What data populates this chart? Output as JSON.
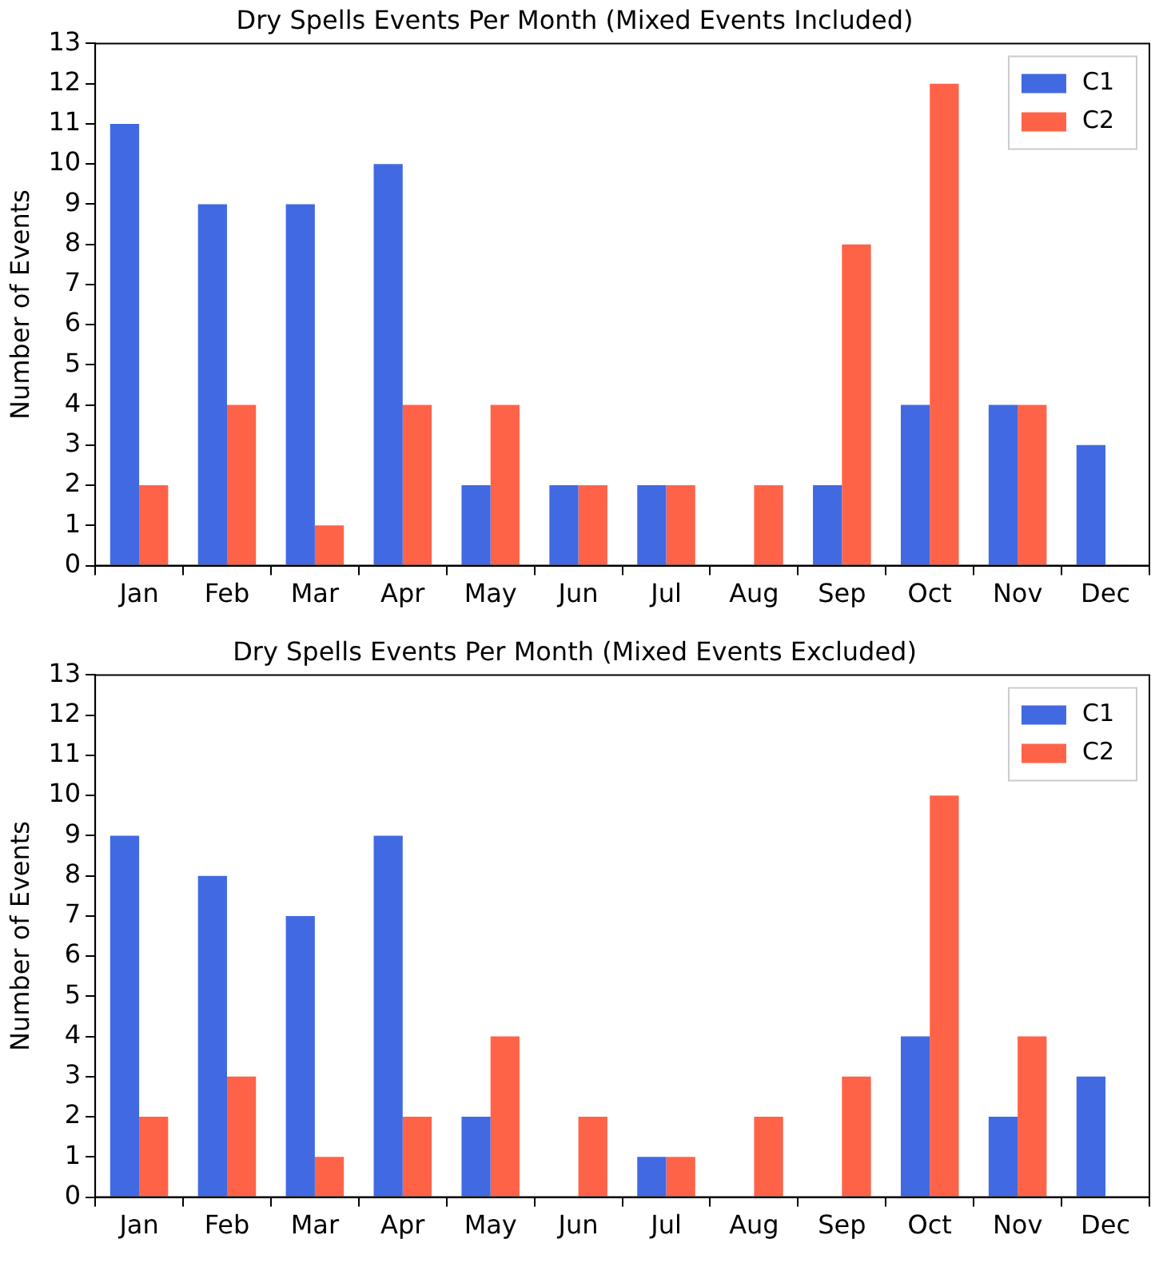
{
  "chart_data": [
    {
      "type": "bar",
      "title": "Dry Spells Events Per Month (Mixed Events Included)",
      "ylabel": "Number of Events",
      "categories": [
        "Jan",
        "Feb",
        "Mar",
        "Apr",
        "May",
        "Jun",
        "Jul",
        "Aug",
        "Sep",
        "Oct",
        "Nov",
        "Dec"
      ],
      "series": [
        {
          "name": "C1",
          "color": "#4169e1",
          "values": [
            11,
            9,
            9,
            10,
            2,
            2,
            2,
            0,
            2,
            4,
            4,
            3
          ]
        },
        {
          "name": "C2",
          "color": "#ff6347",
          "values": [
            2,
            4,
            1,
            4,
            4,
            2,
            2,
            2,
            8,
            12,
            4,
            0
          ]
        }
      ],
      "ylim": [
        0,
        13
      ],
      "yticks": [
        0,
        1,
        2,
        3,
        4,
        5,
        6,
        7,
        8,
        9,
        10,
        11,
        12,
        13
      ],
      "grid": false,
      "legend": "top right"
    },
    {
      "type": "bar",
      "title": "Dry Spells Events Per Month (Mixed Events Excluded)",
      "ylabel": "Number of Events",
      "categories": [
        "Jan",
        "Feb",
        "Mar",
        "Apr",
        "May",
        "Jun",
        "Jul",
        "Aug",
        "Sep",
        "Oct",
        "Nov",
        "Dec"
      ],
      "series": [
        {
          "name": "C1",
          "color": "#4169e1",
          "values": [
            9,
            8,
            7,
            9,
            2,
            0,
            1,
            0,
            0,
            4,
            2,
            3
          ]
        },
        {
          "name": "C2",
          "color": "#ff6347",
          "values": [
            2,
            3,
            1,
            2,
            4,
            2,
            1,
            2,
            3,
            10,
            4,
            0
          ]
        }
      ],
      "ylim": [
        0,
        13
      ],
      "yticks": [
        0,
        1,
        2,
        3,
        4,
        5,
        6,
        7,
        8,
        9,
        10,
        11,
        12,
        13
      ],
      "grid": false,
      "legend": "top right"
    }
  ]
}
